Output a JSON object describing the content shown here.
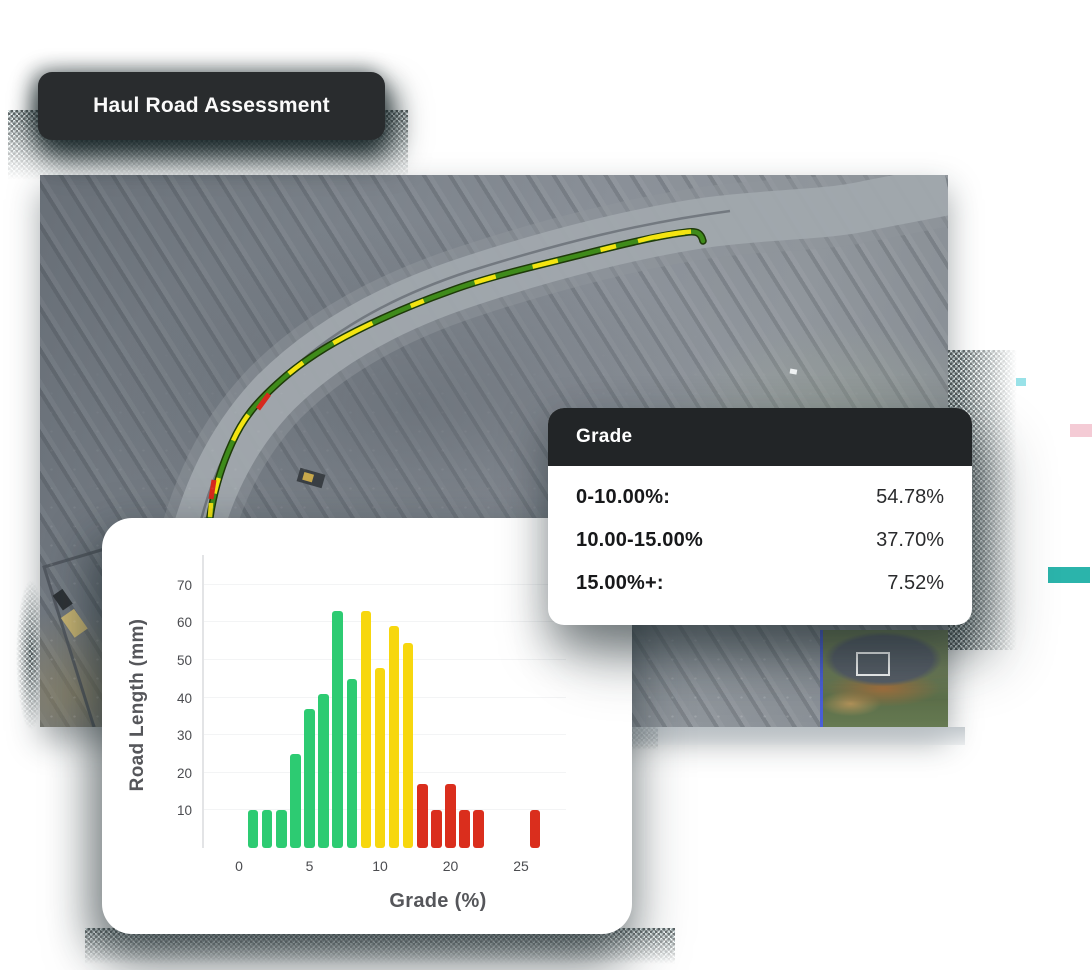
{
  "badge": {
    "label": "Haul Road Assessment"
  },
  "grade_panel": {
    "title": "Grade",
    "rows": [
      {
        "label": "0-10.00%:",
        "value": "54.78%"
      },
      {
        "label": "10.00-15.00%",
        "value": "37.70%"
      },
      {
        "label": "15.00%+:",
        "value": "7.52%"
      }
    ],
    "header_bg": "#222527"
  },
  "chart_data": {
    "type": "bar",
    "title": "",
    "xlabel": "Grade (%)",
    "ylabel": "Road Length (mm)",
    "ylim": [
      0,
      75
    ],
    "yticks": [
      10,
      20,
      30,
      40,
      50,
      60,
      70
    ],
    "xticks": [
      {
        "slot": 0,
        "label": "0"
      },
      {
        "slot": 5,
        "label": "5"
      },
      {
        "slot": 10,
        "label": "10"
      },
      {
        "slot": 15,
        "label": "20"
      },
      {
        "slot": 20,
        "label": "25"
      }
    ],
    "grid": "horizontal",
    "legend": "none",
    "series": [
      {
        "name": "road-length-by-grade",
        "bars": [
          {
            "slot": 1,
            "value": 10,
            "band": "green"
          },
          {
            "slot": 2,
            "value": 10,
            "band": "green"
          },
          {
            "slot": 3,
            "value": 10,
            "band": "green"
          },
          {
            "slot": 4,
            "value": 25,
            "band": "green"
          },
          {
            "slot": 5,
            "value": 37,
            "band": "green"
          },
          {
            "slot": 6,
            "value": 41,
            "band": "green"
          },
          {
            "slot": 7,
            "value": 63,
            "band": "green"
          },
          {
            "slot": 8,
            "value": 45,
            "band": "green"
          },
          {
            "slot": 9,
            "value": 63,
            "band": "yellow"
          },
          {
            "slot": 10,
            "value": 48,
            "band": "yellow"
          },
          {
            "slot": 11,
            "value": 59,
            "band": "yellow"
          },
          {
            "slot": 12,
            "value": 54.5,
            "band": "yellow"
          },
          {
            "slot": 13,
            "value": 17,
            "band": "red"
          },
          {
            "slot": 14,
            "value": 10,
            "band": "red"
          },
          {
            "slot": 15,
            "value": 17,
            "band": "red"
          },
          {
            "slot": 16,
            "value": 10,
            "band": "red"
          },
          {
            "slot": 17,
            "value": 10,
            "band": "red"
          },
          {
            "slot": 21,
            "value": 10,
            "band": "red"
          }
        ]
      }
    ],
    "colors": {
      "green": "#2dcb72",
      "yellow": "#f7d70e",
      "red": "#da2e1d"
    }
  },
  "road_line": {
    "green": "#3f8b1a",
    "yellow": "#f4e411",
    "red": "#d7291d",
    "outline": "#1e3a08",
    "road_fill": "#a2a8ae"
  },
  "ui_colors": {
    "divider_blue": "#4a5fd8",
    "teal_accent": "#2bb4ab",
    "pink_accent": "#f0bac7",
    "cyan_accent": "#7fdbe2",
    "badge_bg": "#292c2e"
  }
}
